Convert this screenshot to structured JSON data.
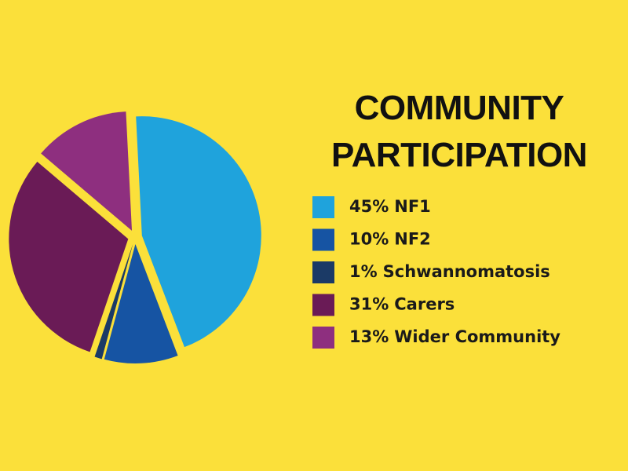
{
  "chart_data": {
    "type": "pie",
    "title": "COMMUNITY PARTICIPATION",
    "categories": [
      "NF1",
      "NF2",
      "Schwannomatosis",
      "Carers",
      "Wider Community"
    ],
    "values": [
      45,
      10,
      1,
      31,
      13
    ],
    "value_labels": [
      "45%",
      "10%",
      "1%",
      "31%",
      "13%"
    ],
    "colors": [
      "#1fa3dc",
      "#1654a3",
      "#1b3a66",
      "#6a1b56",
      "#8e2f7f"
    ],
    "legend": "right"
  }
}
